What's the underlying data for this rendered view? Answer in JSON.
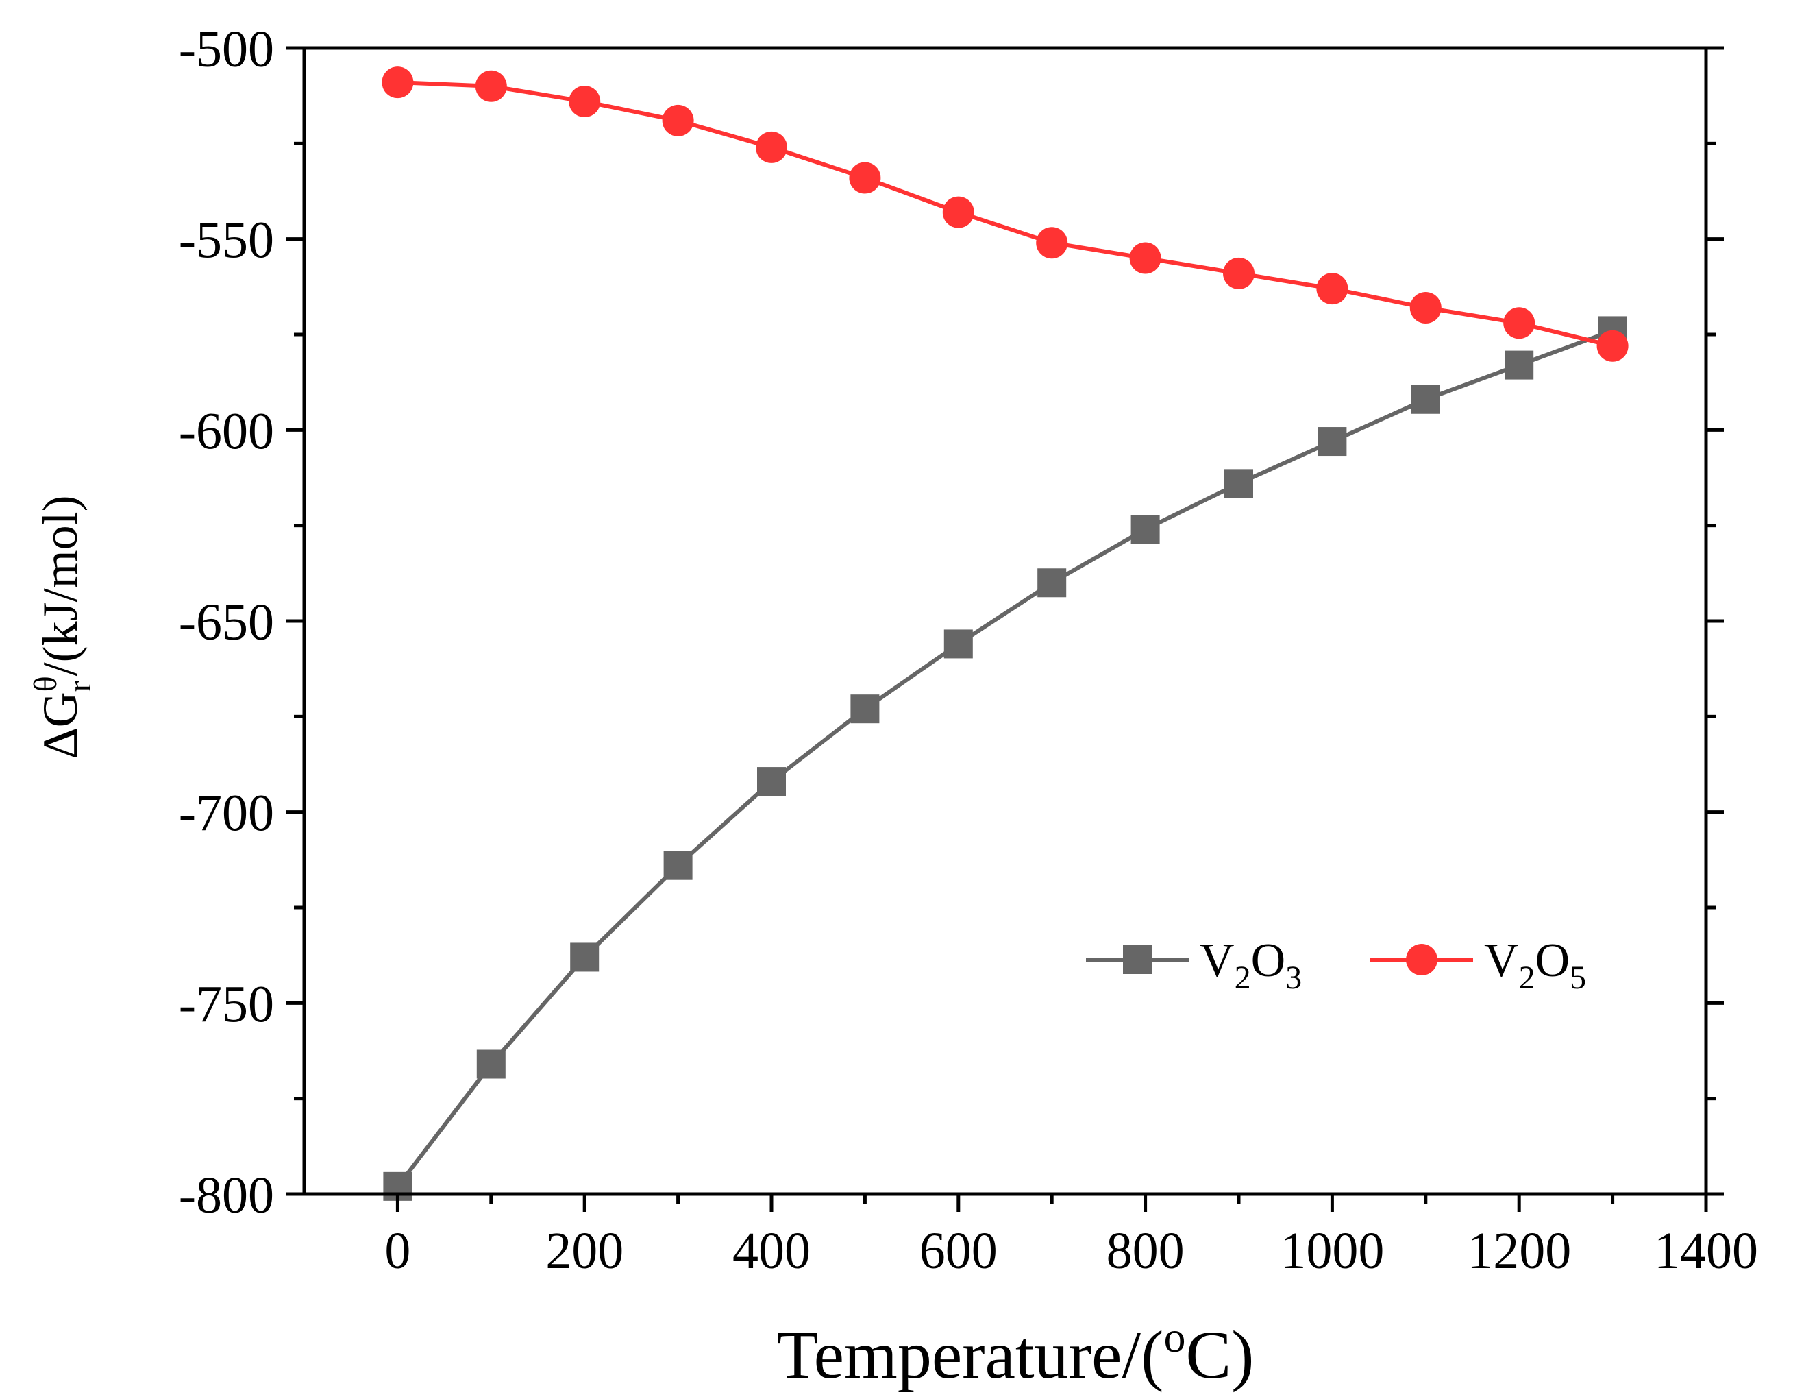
{
  "chart_data": {
    "type": "line",
    "xlabel": "Temperature/(oC)",
    "xlabel_parts": {
      "pre": "Temperature/(",
      "sup": "o",
      "post": "C)"
    },
    "ylabel": "ΔGrθ/(kJ/mol)",
    "ylabel_parts": {
      "pre": "ΔG",
      "sub": "r",
      "sup": "θ",
      "post": "/(kJ/mol)"
    },
    "xlim": [
      -100,
      1400
    ],
    "ylim": [
      -800,
      -500
    ],
    "xticks": [
      0,
      200,
      400,
      600,
      800,
      1000,
      1200,
      1400
    ],
    "xticks_minor": [
      100,
      300,
      500,
      700,
      900,
      1100,
      1300
    ],
    "yticks": [
      -500,
      -550,
      -600,
      -650,
      -700,
      -750,
      -800
    ],
    "yticks_minor": [
      -525,
      -575,
      -625,
      -675,
      -725,
      -775
    ],
    "xtick_labels": [
      "0",
      "200",
      "400",
      "600",
      "800",
      "1000",
      "1200",
      "1400"
    ],
    "ytick_labels": [
      "-500",
      "-550",
      "-600",
      "-650",
      "-700",
      "-750",
      "-800"
    ],
    "legend_position": "lower-right",
    "x": [
      0,
      100,
      200,
      300,
      400,
      500,
      600,
      700,
      800,
      900,
      1000,
      1100,
      1200,
      1300
    ],
    "series": [
      {
        "name": "V2O3",
        "label_parts": {
          "a": "V",
          "a_sub": "2",
          "b": "O",
          "b_sub": "3"
        },
        "marker": "square",
        "color": "#666666",
        "values": [
          -798,
          -766,
          -738,
          -714,
          -692,
          -673,
          -656,
          -640,
          -626,
          -614,
          -603,
          -592,
          -583,
          -574
        ]
      },
      {
        "name": "V2O5",
        "label_parts": {
          "a": "V",
          "a_sub": "2",
          "b": "O",
          "b_sub": "5"
        },
        "marker": "circle",
        "color": "#ff3333",
        "values": [
          -509,
          -510,
          -514,
          -519,
          -526,
          -534,
          -543,
          -551,
          -555,
          -559,
          -563,
          -568,
          -572,
          -578
        ]
      }
    ]
  }
}
